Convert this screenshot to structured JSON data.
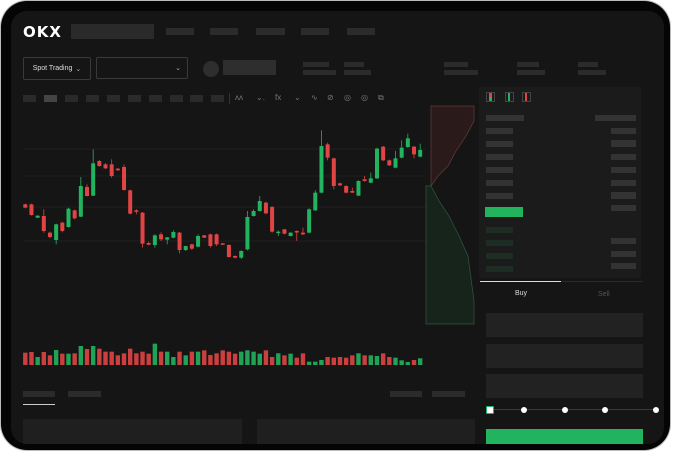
{
  "header": {
    "logo": "OKX"
  },
  "market_bar": {
    "mode_dropdown": "Spot Trading"
  },
  "trade_panel": {
    "tabs": [
      "Buy",
      "Sell"
    ],
    "active_tab": "Buy",
    "slider_position": 0
  },
  "colors": {
    "up": "#22b35e",
    "down": "#e04444",
    "background": "#151515",
    "bezel": "#050505"
  },
  "icons": [
    "chevron-down-icon",
    "indicator-icon",
    "line-tool-icon",
    "pencil-icon",
    "camera-icon",
    "settings-icon",
    "fullscreen-icon",
    "orderbook-both-icon",
    "orderbook-bids-icon",
    "orderbook-asks-icon"
  ],
  "chart_data": {
    "type": "candlestick",
    "candles": [
      [
        170,
        172,
        158,
        160
      ],
      [
        170,
        172,
        136,
        138
      ],
      [
        130,
        137,
        129,
        136
      ],
      [
        135,
        155,
        85,
        90
      ],
      [
        85,
        88,
        68,
        72
      ],
      [
        63,
        112,
        50,
        110
      ],
      [
        115,
        118,
        86,
        90
      ],
      [
        102,
        160,
        100,
        157
      ],
      [
        152,
        154,
        125,
        128
      ],
      [
        133,
        252,
        132,
        225
      ],
      [
        222,
        230,
        194,
        195
      ],
      [
        196,
        335,
        195,
        293
      ],
      [
        300,
        303,
        283,
        285
      ],
      [
        290,
        294,
        276,
        278
      ],
      [
        290,
        305,
        250,
        255
      ],
      [
        277,
        279,
        271,
        272
      ],
      [
        282,
        290,
        211,
        213
      ],
      [
        212,
        214,
        140,
        142
      ],
      [
        152,
        155,
        140,
        148
      ],
      [
        145,
        147,
        40,
        52
      ],
      [
        54,
        58,
        47,
        49
      ],
      [
        48,
        80,
        40,
        77
      ],
      [
        80,
        86,
        60,
        65
      ],
      [
        64,
        72,
        50,
        71
      ],
      [
        70,
        92,
        68,
        87
      ],
      [
        85,
        87,
        23,
        33
      ],
      [
        33,
        46,
        30,
        45
      ],
      [
        50,
        52,
        33,
        37
      ],
      [
        43,
        80,
        41,
        75
      ],
      [
        77,
        78,
        69,
        70
      ],
      [
        80,
        82,
        40,
        45
      ],
      [
        80,
        82,
        45,
        50
      ],
      [
        53,
        54,
        49,
        50
      ],
      [
        48,
        50,
        10,
        12
      ],
      [
        15,
        17,
        8,
        10
      ],
      [
        10,
        32,
        6,
        30
      ],
      [
        35,
        150,
        32,
        132
      ],
      [
        135,
        155,
        133,
        150
      ],
      [
        150,
        195,
        148,
        180
      ],
      [
        175,
        178,
        140,
        143
      ],
      [
        162,
        165,
        85,
        88
      ],
      [
        84,
        92,
        75,
        88
      ],
      [
        95,
        96,
        80,
        82
      ],
      [
        75,
        86,
        74,
        85
      ],
      [
        90,
        92,
        60,
        88
      ],
      [
        85,
        100,
        78,
        80
      ],
      [
        85,
        158,
        83,
        155
      ],
      [
        152,
        212,
        150,
        205
      ],
      [
        205,
        392,
        203,
        345
      ],
      [
        350,
        355,
        302,
        310
      ],
      [
        308,
        310,
        215,
        225
      ],
      [
        233,
        235,
        225,
        227
      ],
      [
        225,
        227,
        203,
        205
      ],
      [
        210,
        220,
        204,
        205
      ],
      [
        196,
        242,
        195,
        240
      ],
      [
        245,
        255,
        238,
        240
      ],
      [
        235,
        265,
        233,
        248
      ],
      [
        248,
        340,
        246,
        337
      ],
      [
        343,
        345,
        300,
        302
      ],
      [
        302,
        304,
        285,
        287
      ],
      [
        280,
        330,
        278,
        308
      ],
      [
        310,
        362,
        308,
        340
      ],
      [
        342,
        382,
        340,
        368
      ],
      [
        343,
        345,
        308,
        320
      ],
      [
        313,
        352,
        311,
        333
      ]
    ],
    "candle_format": [
      "open",
      "high",
      "low",
      "close"
    ],
    "volumes": [
      37,
      39,
      24,
      39,
      29,
      45,
      34,
      34,
      35,
      57,
      48,
      57,
      49,
      40,
      40,
      29,
      35,
      49,
      35,
      40,
      34,
      64,
      40,
      40,
      24,
      40,
      29,
      40,
      40,
      44,
      30,
      35,
      44,
      40,
      34,
      40,
      44,
      40,
      34,
      44,
      24,
      35,
      29,
      34,
      22,
      35,
      10,
      10,
      15,
      24,
      22,
      24,
      22,
      29,
      35,
      29,
      29,
      27,
      35,
      24,
      22,
      14,
      9,
      15,
      20
    ],
    "grid": true
  }
}
